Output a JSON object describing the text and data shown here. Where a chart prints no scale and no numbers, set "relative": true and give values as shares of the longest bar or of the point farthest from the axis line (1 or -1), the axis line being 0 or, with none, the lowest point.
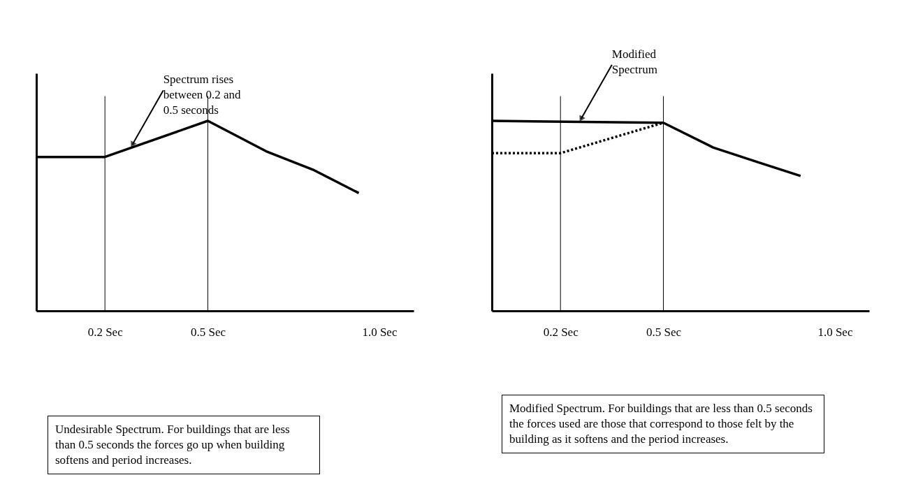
{
  "chart_data": [
    {
      "type": "line",
      "relative": true,
      "x": [
        0,
        0.2,
        0.5,
        0.67,
        0.81,
        0.94
      ],
      "xlim": [
        0,
        1.1
      ],
      "xticks": [
        {
          "value": 0.2,
          "label": "0.2 Sec"
        },
        {
          "value": 0.5,
          "label": "0.5 Sec"
        },
        {
          "value": 1.0,
          "label": "1.0 Sec"
        }
      ],
      "series": [
        {
          "color": "#000000",
          "values": [
            0.81,
            0.81,
            1,
            0.84,
            0.74,
            0.62
          ]
        }
      ],
      "ref_lines": [
        {
          "axis": "x",
          "value": 0.2,
          "color": "#000000"
        },
        {
          "axis": "x",
          "value": 0.5,
          "color": "#000000"
        }
      ],
      "annotations": [
        {
          "text": "Spectrum rises between 0.2 and 0.5 seconds",
          "x": 0.28,
          "y": 0.86
        },
        "Undesirable Spectrum.  For buildings that are less than 0.5 seconds the forces go up when building softens and period increases."
      ]
    },
    {
      "type": "line",
      "relative": true,
      "xlim": [
        0,
        1.1
      ],
      "xticks": [
        {
          "value": 0.2,
          "label": "0.2 Sec"
        },
        {
          "value": 0.5,
          "label": "0.5 Sec"
        },
        {
          "value": 1.0,
          "label": "1.0 Sec"
        }
      ],
      "series": [
        {
          "color": "#000000",
          "x": [
            0,
            0.5,
            0.645,
            0.78,
            0.9
          ],
          "values": [
            1,
            0.99,
            0.86,
            0.78,
            0.71
          ]
        },
        {
          "color": "#000000",
          "line_style": "dotted",
          "x": [
            0,
            0.2,
            0.5
          ],
          "values": [
            0.83,
            0.83,
            0.99
          ]
        }
      ],
      "ref_lines": [
        {
          "axis": "x",
          "value": 0.2,
          "color": "#000000"
        },
        {
          "axis": "x",
          "value": 0.5,
          "color": "#000000"
        }
      ],
      "annotations": [
        {
          "text": "Modified Spectrum",
          "x": 0.26,
          "y": 0.995
        },
        "Modified Spectrum.  For buildings that are less than 0.5 seconds the forces used are those that correspond to those felt by the building as it softens and the period increases."
      ]
    }
  ]
}
